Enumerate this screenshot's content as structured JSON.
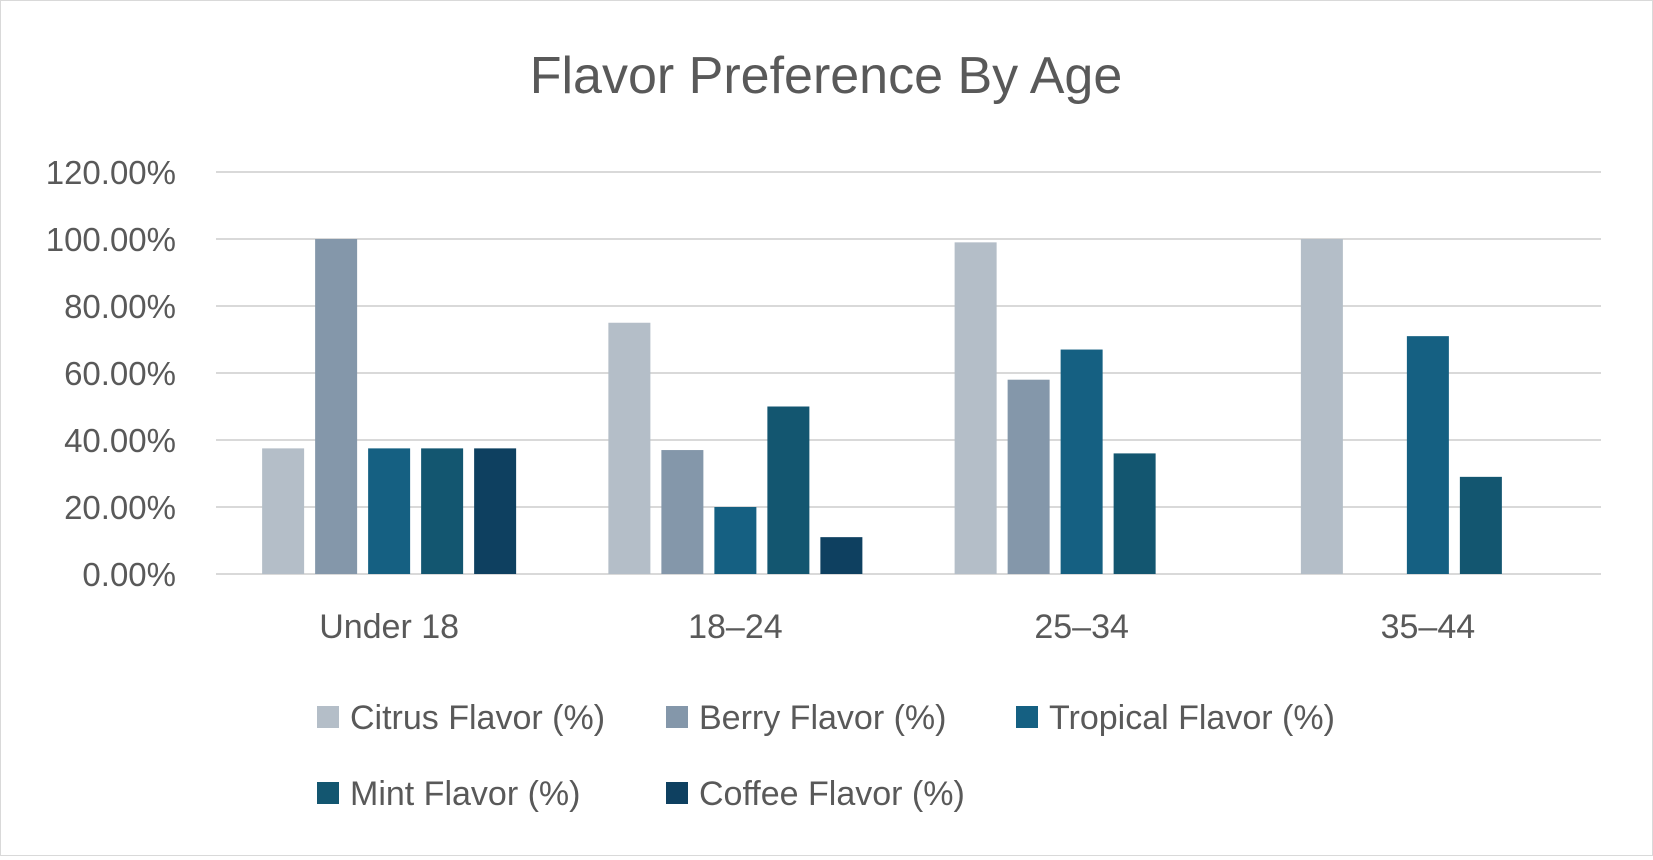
{
  "chart_data": {
    "type": "bar",
    "title": "Flavor Preference By Age",
    "xlabel": "",
    "ylabel": "",
    "categories": [
      "Under 18",
      "18–24",
      "25–34",
      "35–44"
    ],
    "ylim": [
      0,
      1.2
    ],
    "y_ticks": [
      0,
      0.2,
      0.4,
      0.6,
      0.8,
      1.0,
      1.2
    ],
    "y_tick_labels": [
      "0.00%",
      "20.00%",
      "40.00%",
      "60.00%",
      "80.00%",
      "100.00%",
      "120.00%"
    ],
    "grid": true,
    "legend_position": "bottom",
    "series": [
      {
        "name": "Citrus Flavor (%)",
        "color": "#b4bec8",
        "values": [
          0.375,
          0.75,
          0.99,
          1.0
        ]
      },
      {
        "name": "Berry Flavor (%)",
        "color": "#8497aa",
        "values": [
          1.0,
          0.37,
          0.58,
          0
        ]
      },
      {
        "name": "Tropical Flavor (%)",
        "color": "#156082",
        "values": [
          0.375,
          0.2,
          0.67,
          0.71
        ]
      },
      {
        "name": "Mint Flavor (%)",
        "color": "#135670",
        "values": [
          0.375,
          0.5,
          0.36,
          0.29
        ]
      },
      {
        "name": "Coffee Flavor (%)",
        "color": "#0e4060",
        "values": [
          0.375,
          0.11,
          null,
          null
        ]
      }
    ]
  }
}
